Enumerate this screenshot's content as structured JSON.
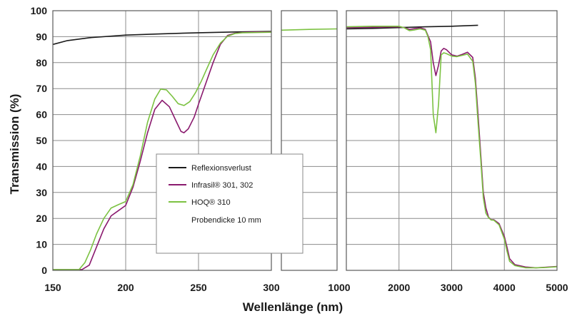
{
  "chart_data": {
    "type": "line",
    "ylabel": "Transmission (%)",
    "xlabel": "Wellenlänge (nm)",
    "ylim": [
      0,
      100
    ],
    "yticks": [
      "0",
      "10",
      "20",
      "30",
      "40",
      "50",
      "60",
      "70",
      "80",
      "90",
      "100"
    ],
    "grid": true,
    "legend_position": "center",
    "legend_note": "Probendicke 10 mm",
    "x_tick_labels": {
      "panel1": [
        "150",
        "200",
        "250",
        "300"
      ],
      "panel2": [
        "1000"
      ],
      "panel3": [
        "2000",
        "3000",
        "4000",
        "5000"
      ]
    },
    "panels": [
      {
        "xlim": [
          150,
          300
        ],
        "xticks": [
          150,
          200,
          250,
          300
        ]
      },
      {
        "xlim": [
          300,
          1000
        ],
        "xticks": [
          300,
          1000
        ]
      },
      {
        "xlim": [
          1000,
          5000
        ],
        "xticks": [
          1000,
          2000,
          3000,
          4000,
          5000
        ]
      }
    ],
    "series": [
      {
        "name": "Reflexionsverlust",
        "color": "#1a1a1a",
        "segments": [
          {
            "panel": 0,
            "points": [
              [
                150,
                87
              ],
              [
                160,
                88.5
              ],
              [
                175,
                89.6
              ],
              [
                200,
                90.6
              ],
              [
                225,
                91.1
              ],
              [
                250,
                91.5
              ],
              [
                275,
                91.8
              ],
              [
                300,
                92
              ]
            ]
          },
          {
            "panel": 2,
            "points": [
              [
                1000,
                93
              ],
              [
                1500,
                93.2
              ],
              [
                2000,
                93.5
              ],
              [
                2500,
                93.8
              ],
              [
                3000,
                94
              ],
              [
                3500,
                94.4
              ]
            ]
          }
        ]
      },
      {
        "name": "Infrasil® 301, 302",
        "color": "#8a1a6e",
        "segments": [
          {
            "panel": 0,
            "points": [
              [
                150,
                0.3
              ],
              [
                170,
                0.3
              ],
              [
                175,
                2
              ],
              [
                180,
                9
              ],
              [
                185,
                16
              ],
              [
                190,
                21
              ],
              [
                195,
                23
              ],
              [
                200,
                25
              ],
              [
                205,
                32
              ],
              [
                210,
                42
              ],
              [
                215,
                53
              ],
              [
                220,
                62
              ],
              [
                225,
                65.5
              ],
              [
                230,
                63
              ],
              [
                235,
                57
              ],
              [
                238,
                53.5
              ],
              [
                240,
                53
              ],
              [
                243,
                54.5
              ],
              [
                247,
                59
              ],
              [
                250,
                64
              ],
              [
                255,
                72
              ],
              [
                260,
                80
              ],
              [
                265,
                87
              ],
              [
                270,
                90.5
              ],
              [
                275,
                91.3
              ],
              [
                280,
                91.6
              ],
              [
                290,
                91.8
              ],
              [
                300,
                91.8
              ]
            ]
          },
          {
            "panel": 2,
            "points": [
              [
                1000,
                93.5
              ],
              [
                1500,
                93.6
              ],
              [
                2000,
                93.8
              ],
              [
                2100,
                93.5
              ],
              [
                2200,
                92.8
              ],
              [
                2300,
                93.1
              ],
              [
                2400,
                93.4
              ],
              [
                2500,
                92.8
              ],
              [
                2600,
                88
              ],
              [
                2650,
                80
              ],
              [
                2700,
                75
              ],
              [
                2750,
                79
              ],
              [
                2800,
                84.5
              ],
              [
                2850,
                85.5
              ],
              [
                2900,
                85
              ],
              [
                3000,
                83
              ],
              [
                3100,
                82.5
              ],
              [
                3200,
                83.2
              ],
              [
                3300,
                84
              ],
              [
                3400,
                82
              ],
              [
                3450,
                74
              ],
              [
                3500,
                60
              ],
              [
                3550,
                45
              ],
              [
                3600,
                30
              ],
              [
                3650,
                24
              ],
              [
                3700,
                20.5
              ],
              [
                3750,
                19.5
              ],
              [
                3800,
                19.5
              ],
              [
                3900,
                18
              ],
              [
                4000,
                13
              ],
              [
                4050,
                9
              ],
              [
                4100,
                4.5
              ],
              [
                4200,
                2.2
              ],
              [
                4400,
                1.3
              ],
              [
                4600,
                1
              ],
              [
                4800,
                1.2
              ],
              [
                5000,
                1.5
              ]
            ]
          }
        ]
      },
      {
        "name": "HOQ® 310",
        "color": "#7cc242",
        "segments": [
          {
            "panel": 0,
            "points": [
              [
                150,
                0.3
              ],
              [
                168,
                0.3
              ],
              [
                172,
                3
              ],
              [
                176,
                8
              ],
              [
                180,
                14
              ],
              [
                185,
                20
              ],
              [
                190,
                24
              ],
              [
                195,
                25.3
              ],
              [
                200,
                26.5
              ],
              [
                205,
                33
              ],
              [
                210,
                44
              ],
              [
                215,
                57
              ],
              [
                220,
                66
              ],
              [
                224,
                69.8
              ],
              [
                228,
                69.5
              ],
              [
                232,
                67
              ],
              [
                236,
                64.2
              ],
              [
                240,
                63.5
              ],
              [
                244,
                65
              ],
              [
                248,
                68.5
              ],
              [
                252,
                73
              ],
              [
                256,
                78
              ],
              [
                260,
                83
              ],
              [
                265,
                87.5
              ],
              [
                270,
                90.2
              ],
              [
                275,
                91.2
              ],
              [
                280,
                91.5
              ],
              [
                290,
                91.6
              ],
              [
                300,
                91.7
              ]
            ]
          },
          {
            "panel": 1,
            "points": [
              [
                300,
                92.5
              ],
              [
                650,
                92.8
              ],
              [
                1000,
                93
              ]
            ]
          },
          {
            "panel": 2,
            "points": [
              [
                1000,
                93.8
              ],
              [
                1500,
                94
              ],
              [
                2000,
                94
              ],
              [
                2100,
                93.4
              ],
              [
                2200,
                92.3
              ],
              [
                2300,
                92.6
              ],
              [
                2400,
                93
              ],
              [
                2500,
                92.5
              ],
              [
                2550,
                90
              ],
              [
                2600,
                85
              ],
              [
                2650,
                60
              ],
              [
                2700,
                53
              ],
              [
                2750,
                64
              ],
              [
                2800,
                83
              ],
              [
                2850,
                83.8
              ],
              [
                2900,
                83.5
              ],
              [
                3000,
                82.5
              ],
              [
                3100,
                82.3
              ],
              [
                3200,
                82.8
              ],
              [
                3300,
                83.3
              ],
              [
                3400,
                80.5
              ],
              [
                3450,
                72
              ],
              [
                3500,
                57
              ],
              [
                3550,
                43
              ],
              [
                3600,
                28
              ],
              [
                3650,
                22
              ],
              [
                3700,
                20.3
              ],
              [
                3750,
                19.4
              ],
              [
                3800,
                19.3
              ],
              [
                3900,
                17.5
              ],
              [
                4000,
                12
              ],
              [
                4050,
                7.5
              ],
              [
                4100,
                3.5
              ],
              [
                4200,
                1.8
              ],
              [
                4400,
                1
              ],
              [
                4600,
                1
              ],
              [
                4800,
                1.1
              ],
              [
                5000,
                1.4
              ]
            ]
          }
        ]
      }
    ]
  }
}
